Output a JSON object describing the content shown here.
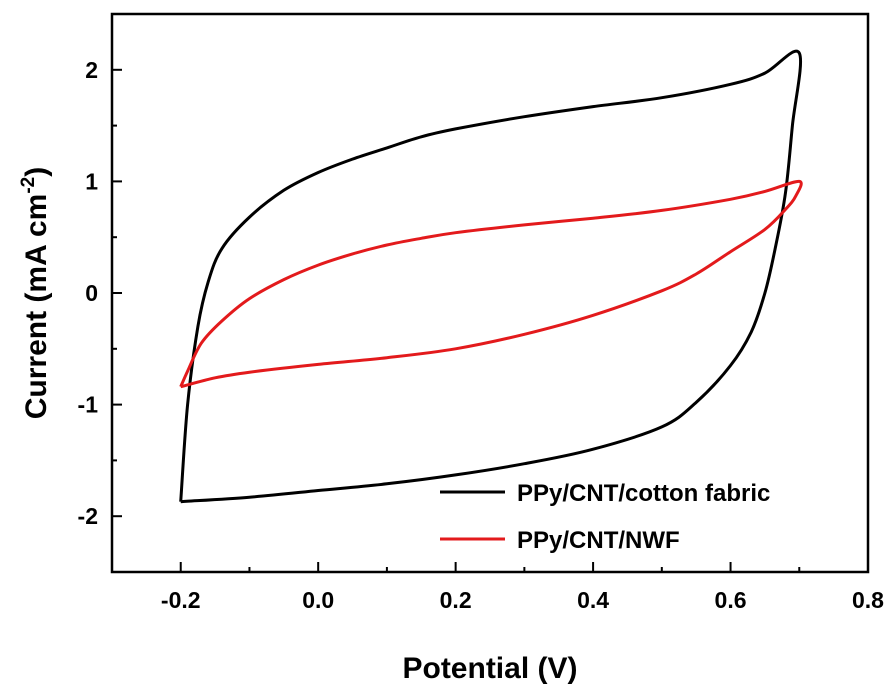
{
  "chart_data": {
    "type": "line",
    "title": "",
    "xlabel": "Potential (V)",
    "ylabel_main": "Current (mA cm",
    "ylabel_sup": "-2",
    "ylabel_close": ")",
    "xlim": [
      -0.3,
      0.8
    ],
    "ylim": [
      -2.5,
      2.5
    ],
    "x_ticks": [
      -0.2,
      0.0,
      0.2,
      0.4,
      0.6,
      0.8
    ],
    "x_tick_labels": [
      "-0.2",
      "0.0",
      "0.2",
      "0.4",
      "0.6",
      "0.8"
    ],
    "y_ticks": [
      -2,
      -1,
      0,
      1,
      2
    ],
    "y_tick_labels": [
      "-2",
      "-1",
      "0",
      "1",
      "2"
    ],
    "grid": false,
    "legend_position": "bottom-right",
    "series": [
      {
        "name": "PPy/CNT/cotton fabric",
        "color": "#000000",
        "points": [
          [
            -0.2,
            -1.87
          ],
          [
            -0.19,
            -1.0
          ],
          [
            -0.175,
            -0.3
          ],
          [
            -0.16,
            0.1
          ],
          [
            -0.14,
            0.4
          ],
          [
            -0.1,
            0.68
          ],
          [
            -0.05,
            0.92
          ],
          [
            0.0,
            1.08
          ],
          [
            0.05,
            1.2
          ],
          [
            0.1,
            1.3
          ],
          [
            0.15,
            1.4
          ],
          [
            0.2,
            1.47
          ],
          [
            0.3,
            1.58
          ],
          [
            0.4,
            1.67
          ],
          [
            0.5,
            1.75
          ],
          [
            0.6,
            1.87
          ],
          [
            0.65,
            1.97
          ],
          [
            0.7,
            2.15
          ],
          [
            0.69,
            1.5
          ],
          [
            0.68,
            0.9
          ],
          [
            0.665,
            0.4
          ],
          [
            0.65,
            0.0
          ],
          [
            0.63,
            -0.35
          ],
          [
            0.6,
            -0.65
          ],
          [
            0.55,
            -0.98
          ],
          [
            0.5,
            -1.2
          ],
          [
            0.4,
            -1.4
          ],
          [
            0.3,
            -1.53
          ],
          [
            0.2,
            -1.63
          ],
          [
            0.1,
            -1.71
          ],
          [
            0.0,
            -1.77
          ],
          [
            -0.1,
            -1.83
          ],
          [
            -0.2,
            -1.87
          ]
        ]
      },
      {
        "name": "PPy/CNT/NWF",
        "color": "#e31a1c",
        "points": [
          [
            -0.2,
            -0.84
          ],
          [
            -0.19,
            -0.7
          ],
          [
            -0.17,
            -0.45
          ],
          [
            -0.14,
            -0.25
          ],
          [
            -0.1,
            -0.05
          ],
          [
            -0.05,
            0.12
          ],
          [
            0.0,
            0.25
          ],
          [
            0.05,
            0.35
          ],
          [
            0.1,
            0.43
          ],
          [
            0.15,
            0.49
          ],
          [
            0.2,
            0.54
          ],
          [
            0.3,
            0.61
          ],
          [
            0.4,
            0.67
          ],
          [
            0.5,
            0.74
          ],
          [
            0.6,
            0.84
          ],
          [
            0.65,
            0.91
          ],
          [
            0.7,
            1.0
          ],
          [
            0.695,
            0.87
          ],
          [
            0.68,
            0.75
          ],
          [
            0.65,
            0.57
          ],
          [
            0.6,
            0.37
          ],
          [
            0.55,
            0.17
          ],
          [
            0.5,
            0.02
          ],
          [
            0.4,
            -0.2
          ],
          [
            0.3,
            -0.37
          ],
          [
            0.2,
            -0.5
          ],
          [
            0.1,
            -0.58
          ],
          [
            0.0,
            -0.64
          ],
          [
            -0.1,
            -0.71
          ],
          [
            -0.15,
            -0.76
          ],
          [
            -0.2,
            -0.84
          ]
        ]
      }
    ]
  }
}
